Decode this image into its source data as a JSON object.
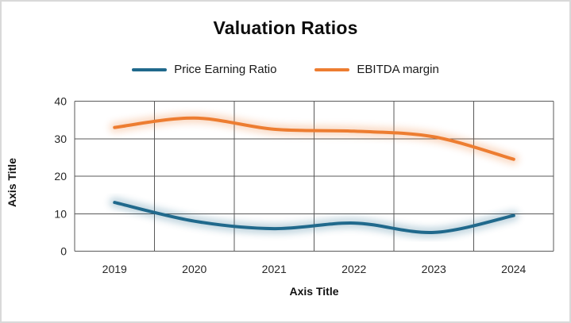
{
  "chart_data": {
    "type": "line",
    "title": "Valuation Ratios",
    "xlabel": "Axis Title",
    "ylabel": "Axis Title",
    "categories": [
      "2019",
      "2020",
      "2021",
      "2022",
      "2023",
      "2024"
    ],
    "series": [
      {
        "name": "Price Earning Ratio",
        "color": "#20698C",
        "values": [
          13,
          8,
          6,
          7.5,
          5,
          9.5
        ]
      },
      {
        "name": "EBITDA margin",
        "color": "#ED7D31",
        "values": [
          33,
          35.5,
          32.5,
          32,
          30.5,
          24.5
        ]
      }
    ],
    "ylim": [
      0,
      40
    ],
    "yticks": [
      0,
      10,
      20,
      30,
      40
    ],
    "grid": true,
    "smooth": true,
    "legend_position": "top-center",
    "line_effect": "soft-glow",
    "gridline_color": "#595959",
    "background_color": "#ffffff",
    "border_color": "#d9d9d9"
  }
}
